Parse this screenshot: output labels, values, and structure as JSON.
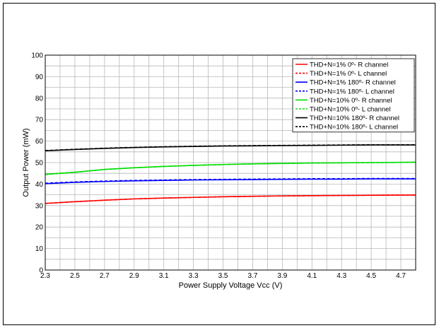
{
  "chart_data": {
    "type": "line",
    "title": "",
    "xlabel": "Power Supply Voltage Vcc (V)",
    "ylabel": "Output Power (mW)",
    "xlim": [
      2.3,
      4.8
    ],
    "ylim": [
      0,
      100
    ],
    "x_ticks": [
      "2.3",
      "2.5",
      "2.7",
      "2.9",
      "3.1",
      "3.3",
      "3.5",
      "3.7",
      "3.9",
      "4.1",
      "4.3",
      "4.5",
      "4.7"
    ],
    "y_ticks": [
      "0",
      "10",
      "20",
      "30",
      "40",
      "50",
      "60",
      "70",
      "80",
      "90",
      "100"
    ],
    "grid": true,
    "legend_position": "top-right",
    "x": [
      2.3,
      2.5,
      2.7,
      2.9,
      3.1,
      3.3,
      3.5,
      3.7,
      3.9,
      4.1,
      4.3,
      4.5,
      4.7,
      4.8
    ],
    "series": [
      {
        "name": "THD+N=1% 0º- R channel",
        "color": "#ff0000",
        "dash": false,
        "values": [
          31.0,
          31.8,
          32.5,
          33.1,
          33.5,
          33.8,
          34.1,
          34.3,
          34.5,
          34.6,
          34.7,
          34.8,
          34.9,
          34.9
        ]
      },
      {
        "name": "THD+N=1% 0º- L channel",
        "color": "#ff0000",
        "dash": true,
        "values": [
          31.0,
          31.8,
          32.5,
          33.1,
          33.5,
          33.8,
          34.1,
          34.3,
          34.5,
          34.6,
          34.7,
          34.8,
          34.9,
          34.9
        ]
      },
      {
        "name": "THD+N=1% 180º- R channel",
        "color": "#0000ff",
        "dash": false,
        "values": [
          40.2,
          40.8,
          41.2,
          41.5,
          41.7,
          41.9,
          42.0,
          42.1,
          42.2,
          42.3,
          42.3,
          42.4,
          42.4,
          42.4
        ]
      },
      {
        "name": "THD+N=1% 180º- L channel",
        "color": "#0000ff",
        "dash": true,
        "values": [
          40.4,
          41.0,
          41.4,
          41.7,
          41.9,
          42.1,
          42.2,
          42.3,
          42.4,
          42.5,
          42.5,
          42.6,
          42.6,
          42.6
        ]
      },
      {
        "name": "THD+N=10% 0º- R channel",
        "color": "#00dd00",
        "dash": false,
        "values": [
          44.5,
          45.5,
          46.8,
          47.6,
          48.2,
          48.7,
          49.1,
          49.4,
          49.6,
          49.8,
          49.9,
          50.0,
          50.1,
          50.2
        ]
      },
      {
        "name": "THD+N=10% 0º- L channel",
        "color": "#00dd00",
        "dash": true,
        "values": [
          44.5,
          45.5,
          46.8,
          47.6,
          48.2,
          48.7,
          49.1,
          49.4,
          49.6,
          49.8,
          49.9,
          50.0,
          50.1,
          50.2
        ]
      },
      {
        "name": "THD+N=10% 180º- R channel",
        "color": "#000000",
        "dash": false,
        "values": [
          55.5,
          56.1,
          56.6,
          57.0,
          57.3,
          57.5,
          57.7,
          57.8,
          57.9,
          58.0,
          58.1,
          58.2,
          58.2,
          58.2
        ]
      },
      {
        "name": "THD+N=10% 180º- L channel",
        "color": "#000000",
        "dash": true,
        "values": [
          55.6,
          56.2,
          56.7,
          57.1,
          57.4,
          57.6,
          57.8,
          57.9,
          58.0,
          58.1,
          58.2,
          58.3,
          58.3,
          58.3
        ]
      }
    ]
  }
}
